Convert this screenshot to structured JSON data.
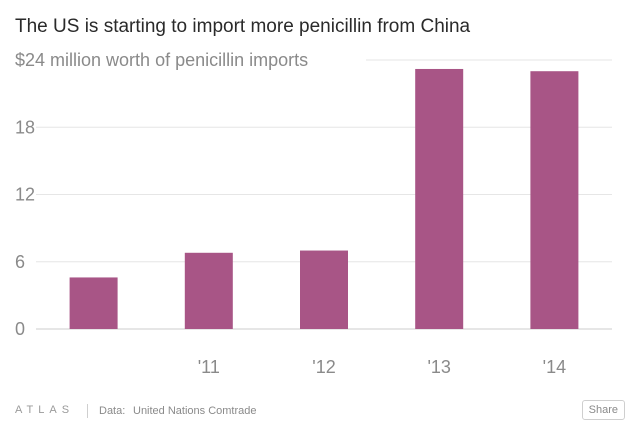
{
  "title": "The US is starting to import more penicillin from China",
  "chart_data": {
    "type": "bar",
    "categories": [
      "",
      "'11",
      "'12",
      "'13",
      "'14"
    ],
    "values": [
      4.6,
      6.8,
      7.0,
      23.2,
      23.0
    ],
    "y_ticks": [
      {
        "value": 24,
        "label": "$24 million worth of penicillin imports"
      },
      {
        "value": 18,
        "label": "18"
      },
      {
        "value": 12,
        "label": "12"
      },
      {
        "value": 6,
        "label": "6"
      },
      {
        "value": 0,
        "label": "0"
      }
    ],
    "ylim": [
      0,
      24
    ],
    "bar_color": "#a85586",
    "grid": true
  },
  "footer": {
    "logo": "ATLAS",
    "source_label": "Data:",
    "source_value": "United Nations Comtrade",
    "share_label": "Share"
  },
  "colors": {
    "text": "#2a2a2a",
    "axis_text": "#8a8a8a",
    "grid": "#e6e6e6"
  }
}
